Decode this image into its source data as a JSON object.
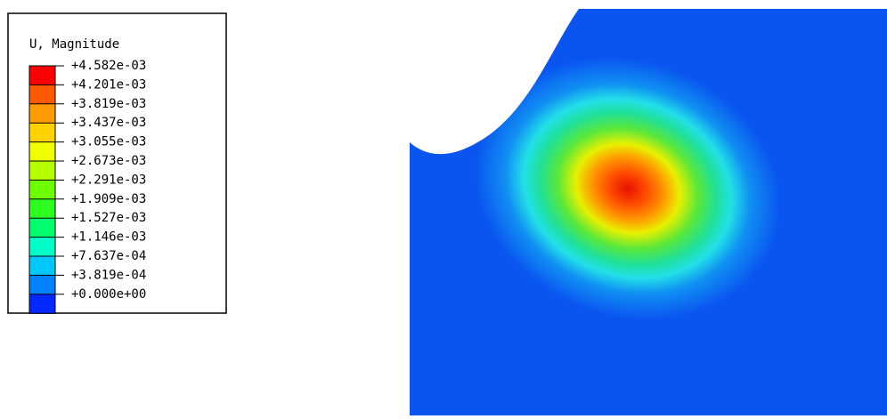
{
  "legend": {
    "title": "U, Magnitude",
    "labels": [
      "+4.582e-03",
      "+4.201e-03",
      "+3.819e-03",
      "+3.437e-03",
      "+3.055e-03",
      "+2.673e-03",
      "+2.291e-03",
      "+1.909e-03",
      "+1.527e-03",
      "+1.146e-03",
      "+7.637e-04",
      "+3.819e-04",
      "+0.000e+00"
    ],
    "colors": [
      "#ff0000",
      "#ff5a00",
      "#ff9b00",
      "#ffd200",
      "#f0ff00",
      "#b4ff00",
      "#6eff00",
      "#2dff1e",
      "#00ff6e",
      "#00ffc8",
      "#00c8ff",
      "#0082ff",
      "#0028ff"
    ]
  }
}
